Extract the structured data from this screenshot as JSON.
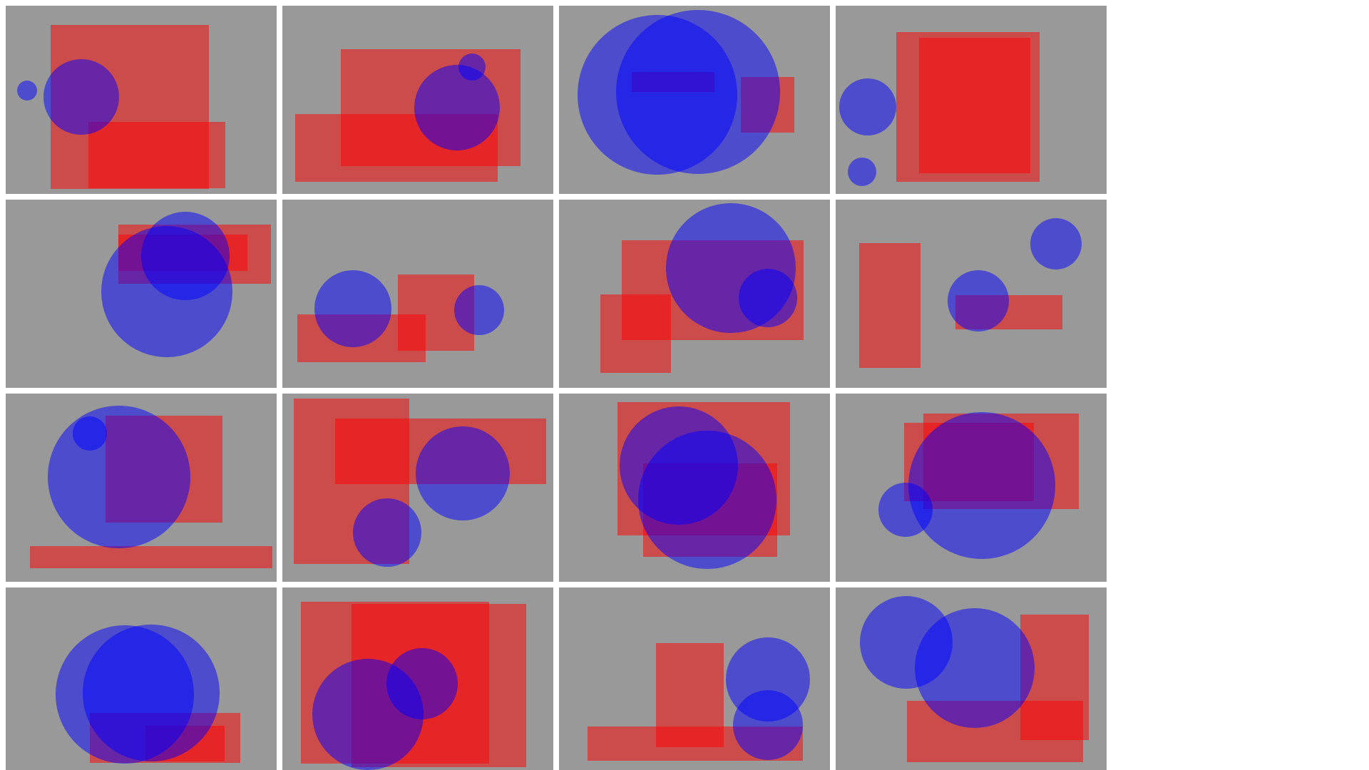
{
  "figure": {
    "background_color": "#ffffff",
    "panel_background_color": "#999999",
    "rectangle_color": "#ff0000",
    "rectangle_opacity": 0.5,
    "circle_color": "#0000ff",
    "circle_opacity": 0.5,
    "grid_rows": 4,
    "grid_cols": 4,
    "panel_count": 16
  }
}
